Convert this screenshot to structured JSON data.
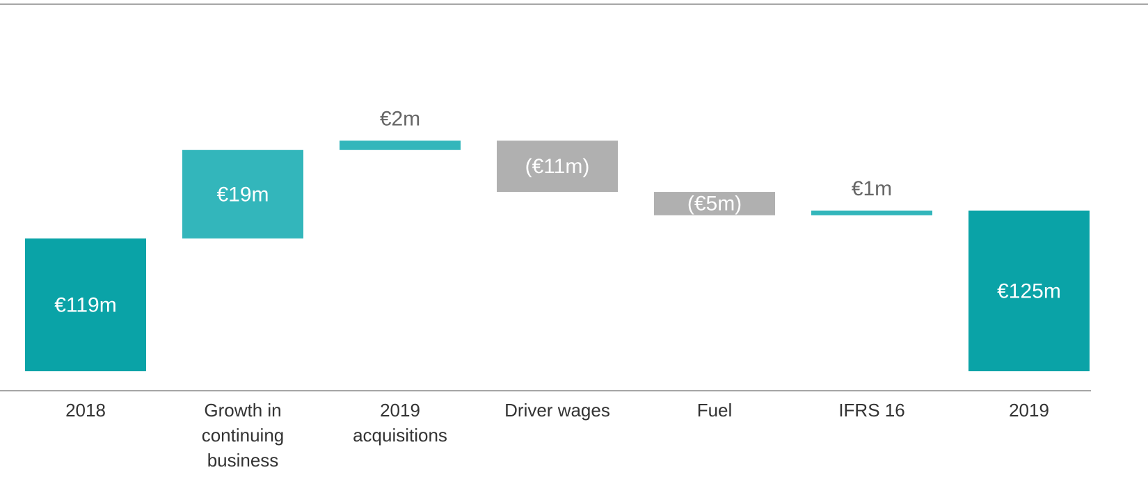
{
  "chart_data": {
    "type": "waterfall",
    "categories": [
      "2018",
      "Growth in continuing business",
      "2019 acquisitions",
      "Driver wages",
      "Fuel",
      "IFRS 16",
      "2019"
    ],
    "values": [
      119,
      19,
      2,
      -11,
      -5,
      1,
      125
    ],
    "value_labels": [
      "€119m",
      "€19m",
      "€2m",
      "(€11m)",
      "(€5m)",
      "€1m",
      "€125m"
    ],
    "total_color": "#0aa3a7",
    "increase_color": "#33b6bb",
    "decrease_color": "#b0b0b0"
  }
}
